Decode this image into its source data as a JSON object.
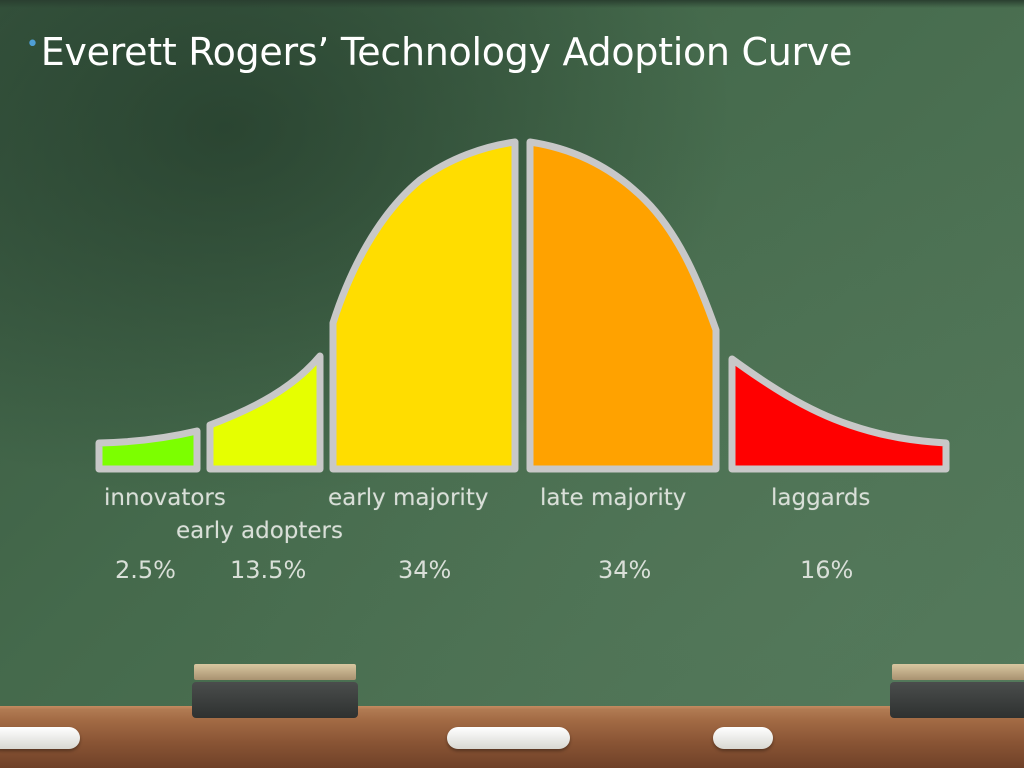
{
  "slide": {
    "title": "Everett Rogers’ Technology Adoption Curve",
    "bullet": "•"
  },
  "segments": [
    {
      "label": "innovators",
      "percent": "2.5%",
      "color": "#7cff00"
    },
    {
      "label": "early adopters",
      "percent": "13.5%",
      "color": "#e6ff00"
    },
    {
      "label": "early majority",
      "percent": "34%",
      "color": "#ffdd00"
    },
    {
      "label": "late majority",
      "percent": "34%",
      "color": "#ffa200"
    },
    {
      "label": "laggards",
      "percent": "16%",
      "color": "#ff0000"
    }
  ],
  "colors": {
    "board": "#3d5d45",
    "chalk_text": "#d9dfd8",
    "outline": "#c8c8c8",
    "bullet": "#4f9fd6"
  }
}
